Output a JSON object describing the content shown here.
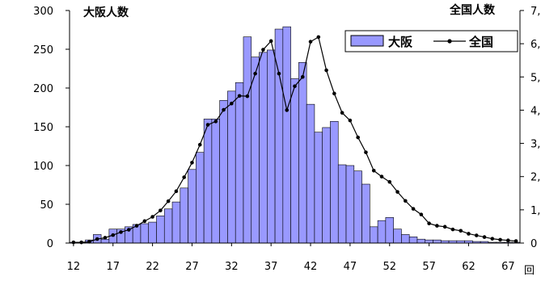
{
  "chart_data": {
    "type": "bar",
    "xlabel": "回",
    "ylabel_left": "大阪人数",
    "ylabel_right": "全国人数",
    "ylim_left": [
      0,
      300
    ],
    "ylim_right": [
      0,
      7000
    ],
    "y_ticks_left": [
      "0",
      "50",
      "100",
      "150",
      "200",
      "250",
      "300"
    ],
    "y_ticks_right": [
      "0",
      "1,",
      "2,",
      "3,",
      "4,",
      "5,",
      "6,",
      "7,"
    ],
    "x_ticks": [
      "12",
      "17",
      "22",
      "27",
      "32",
      "37",
      "42",
      "47",
      "52",
      "57",
      "62",
      "67"
    ],
    "x": [
      12,
      13,
      14,
      15,
      16,
      17,
      18,
      19,
      20,
      21,
      22,
      23,
      24,
      25,
      26,
      27,
      28,
      29,
      30,
      31,
      32,
      33,
      34,
      35,
      36,
      37,
      38,
      39,
      40,
      41,
      42,
      43,
      44,
      45,
      46,
      47,
      48,
      49,
      50,
      51,
      52,
      53,
      54,
      55,
      56,
      57,
      58,
      59,
      60,
      61,
      62,
      63,
      64,
      65,
      66,
      67,
      68
    ],
    "series": [
      {
        "name": "大阪",
        "kind": "bar",
        "axis": "left",
        "color": "#9999FF",
        "values": [
          1,
          1,
          4,
          11,
          5,
          18,
          18,
          21,
          24,
          25,
          27,
          35,
          44,
          53,
          71,
          95,
          117,
          160,
          160,
          184,
          196,
          207,
          266,
          240,
          246,
          249,
          276,
          279,
          212,
          233,
          179,
          143,
          149,
          157,
          101,
          100,
          93,
          76,
          21,
          29,
          33,
          18,
          11,
          8,
          5,
          4,
          4,
          3,
          3,
          3,
          3,
          2,
          2,
          1,
          1,
          1,
          1
        ]
      },
      {
        "name": "全国",
        "kind": "line",
        "axis": "right",
        "color": "#000000",
        "values": [
          20,
          20,
          40,
          120,
          160,
          240,
          330,
          400,
          520,
          660,
          790,
          980,
          1260,
          1560,
          1980,
          2420,
          2960,
          3560,
          3660,
          4010,
          4200,
          4430,
          4420,
          5100,
          5820,
          6080,
          5100,
          4000,
          4720,
          5000,
          6060,
          6200,
          5200,
          4500,
          3920,
          3690,
          3180,
          2730,
          2180,
          2000,
          1840,
          1540,
          1270,
          1030,
          860,
          590,
          520,
          490,
          410,
          370,
          280,
          230,
          180,
          130,
          100,
          80,
          60
        ]
      }
    ],
    "legend": {
      "placement": "top-right"
    },
    "grid": false
  }
}
